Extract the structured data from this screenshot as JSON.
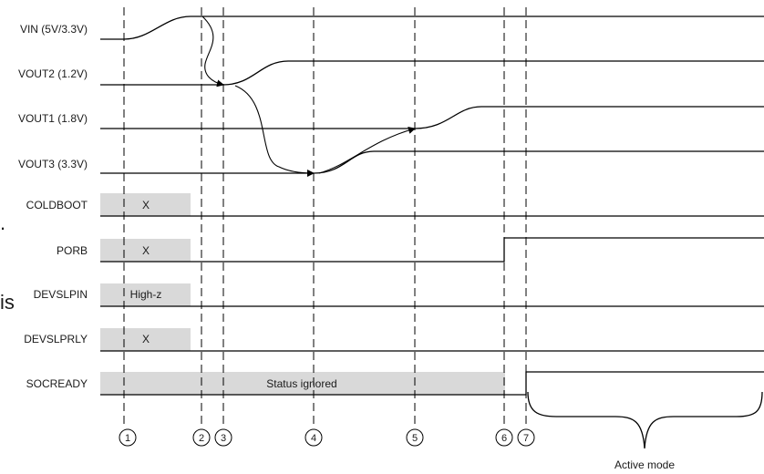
{
  "signals": [
    {
      "label": "VIN (5V/3.3V)"
    },
    {
      "label": "VOUT2 (1.2V)"
    },
    {
      "label": "VOUT1 (1.8V)"
    },
    {
      "label": "VOUT3 (3.3V)"
    },
    {
      "label": "COLDBOOT"
    },
    {
      "label": "PORB"
    },
    {
      "label": "DEVSLPIN"
    },
    {
      "label": "DEVSLPRLY"
    },
    {
      "label": "SOCREADY"
    }
  ],
  "shaded_labels": {
    "coldboot": "X",
    "porb": "X",
    "devslpin": "High-z",
    "devslprly": "X",
    "socready": "Status ignored"
  },
  "markers": [
    "1",
    "2",
    "3",
    "4",
    "5",
    "6",
    "7"
  ],
  "active_mode_label": "Active mode",
  "left_fragments": {
    "dot": ".",
    "is": "is"
  }
}
